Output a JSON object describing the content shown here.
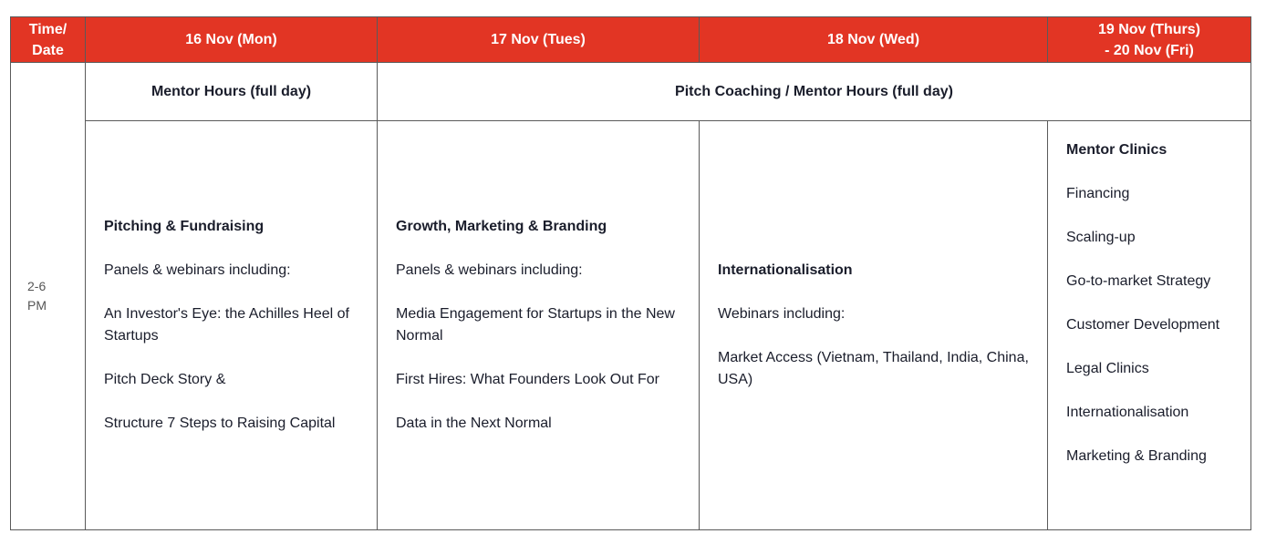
{
  "header": {
    "time_date": "Time/\nDate",
    "day1": "16 Nov (Mon)",
    "day2": "17 Nov (Tues)",
    "day3": "18 Nov (Wed)",
    "day4": "19 Nov (Thurs)\n- 20 Nov (Fri)"
  },
  "time_slot": "2-6\nPM",
  "bars": {
    "mentor_hours": "Mentor Hours (full day)",
    "pitch_coaching": "Pitch Coaching / Mentor Hours (full day)"
  },
  "columns": {
    "mon": {
      "title": "Pitching & Fundraising",
      "lines": [
        "Panels & webinars including:",
        "An Investor's Eye: the Achilles Heel of Startups",
        "Pitch Deck Story &",
        "Structure 7 Steps to Raising Capital"
      ]
    },
    "tue": {
      "title": "Growth, Marketing & Branding",
      "lines": [
        "Panels & webinars including:",
        "Media Engagement for Startups in the New Normal",
        "First Hires: What Founders Look Out For",
        "Data in the Next Normal"
      ]
    },
    "wed": {
      "title": "Internationalisation",
      "lines": [
        "Webinars including:",
        "Market Access (Vietnam, Thailand, India, China, USA)"
      ]
    },
    "thu_fri": {
      "title": "Mentor Clinics",
      "lines": [
        "Financing",
        "Scaling-up",
        "Go-to-market Strategy",
        "Customer Development",
        "Legal Clinics",
        "Internationalisation",
        "Marketing & Branding"
      ]
    }
  },
  "colors": {
    "header_bg": "#e23524",
    "header_text": "#ffffff",
    "body_text": "#1a1d2b"
  }
}
